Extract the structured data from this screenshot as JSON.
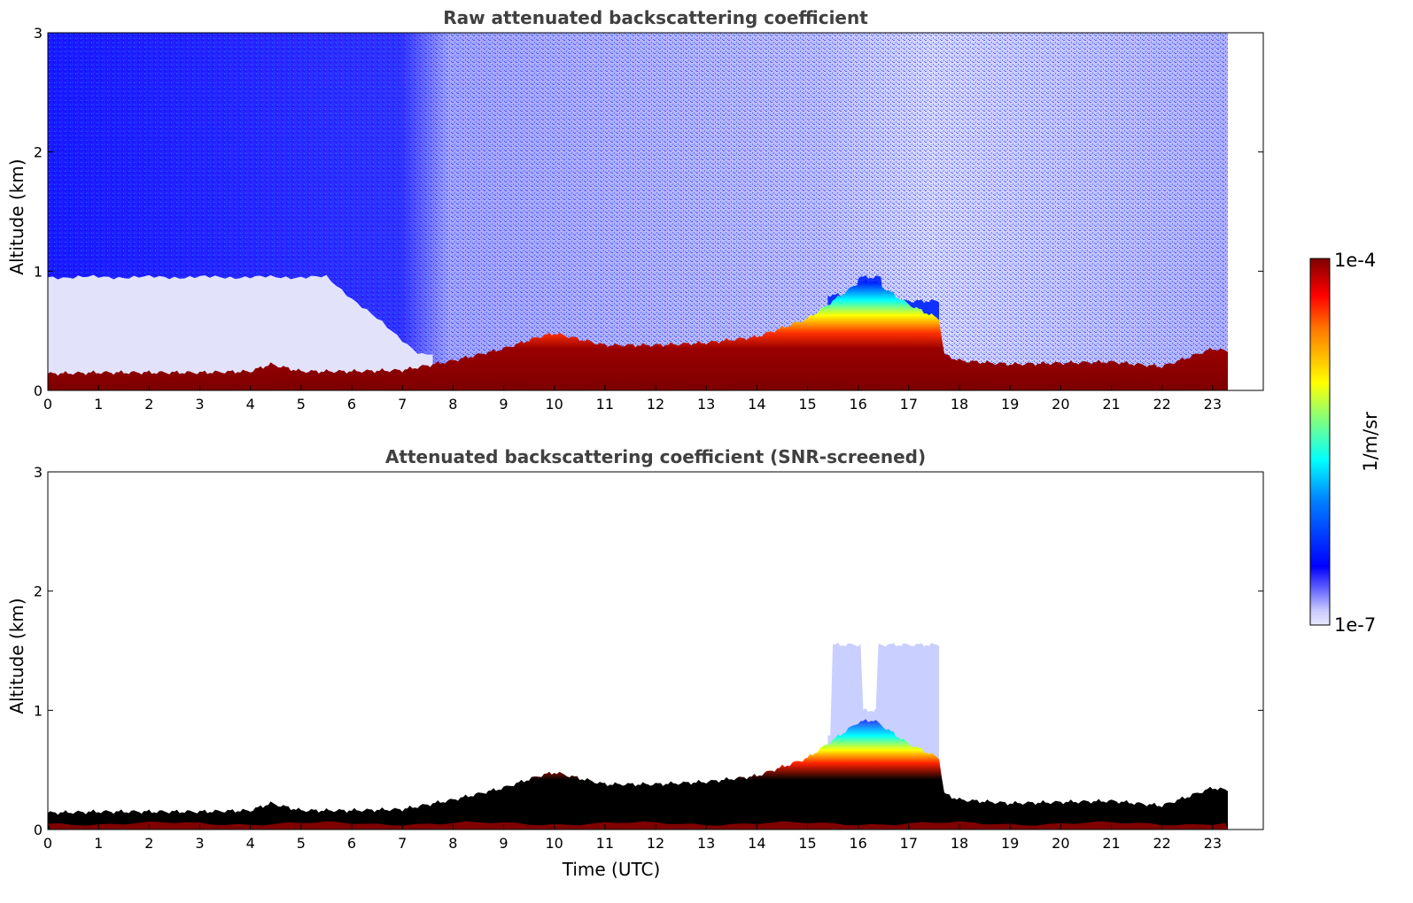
{
  "chart_data": [
    {
      "type": "heatmap",
      "title": "Raw attenuated backscattering coefficient",
      "xlabel": "",
      "ylabel": "Altitude (km)",
      "xlim": [
        0,
        24
      ],
      "ylim": [
        0,
        3
      ],
      "x_ticks": [
        "0",
        "1",
        "2",
        "3",
        "4",
        "5",
        "6",
        "7",
        "8",
        "9",
        "10",
        "11",
        "12",
        "13",
        "14",
        "15",
        "16",
        "17",
        "18",
        "19",
        "20",
        "21",
        "22",
        "23"
      ],
      "y_ticks": [
        "0",
        "1",
        "2",
        "3"
      ],
      "data_time_range": [
        0,
        23.3
      ],
      "boundary_layer_top_km": [
        [
          0,
          0.14
        ],
        [
          1,
          0.15
        ],
        [
          2,
          0.15
        ],
        [
          3,
          0.15
        ],
        [
          4,
          0.16
        ],
        [
          4.4,
          0.22
        ],
        [
          5,
          0.16
        ],
        [
          6,
          0.16
        ],
        [
          7,
          0.17
        ],
        [
          8,
          0.25
        ],
        [
          9,
          0.35
        ],
        [
          9.7,
          0.45
        ],
        [
          10,
          0.48
        ],
        [
          11,
          0.38
        ],
        [
          12,
          0.38
        ],
        [
          13,
          0.4
        ],
        [
          14,
          0.45
        ],
        [
          15,
          0.6
        ],
        [
          15.5,
          0.75
        ],
        [
          16,
          0.9
        ],
        [
          16.3,
          0.92
        ],
        [
          17,
          0.72
        ],
        [
          17.6,
          0.6
        ],
        [
          17.7,
          0.3
        ],
        [
          18,
          0.25
        ],
        [
          19,
          0.22
        ],
        [
          20,
          0.23
        ],
        [
          21,
          0.24
        ],
        [
          22,
          0.2
        ],
        [
          23,
          0.35
        ],
        [
          23.3,
          0.33
        ]
      ],
      "colorbar": {
        "label": "1/m/sr",
        "min_label": "1e-7",
        "max_label": "1e-4",
        "scale": "log"
      }
    },
    {
      "type": "heatmap",
      "title": "Attenuated backscattering coefficient (SNR-screened)",
      "xlabel": "Time (UTC)",
      "ylabel": "Altitude (km)",
      "xlim": [
        0,
        24
      ],
      "ylim": [
        0,
        3
      ],
      "x_ticks": [
        "0",
        "1",
        "2",
        "3",
        "4",
        "5",
        "6",
        "7",
        "8",
        "9",
        "10",
        "11",
        "12",
        "13",
        "14",
        "15",
        "16",
        "17",
        "18",
        "19",
        "20",
        "21",
        "22",
        "23"
      ],
      "y_ticks": [
        "0",
        "1",
        "2",
        "3"
      ],
      "data_time_range": [
        0,
        23.3
      ],
      "boundary_layer_top_km": [
        [
          0,
          0.14
        ],
        [
          1,
          0.15
        ],
        [
          2,
          0.15
        ],
        [
          3,
          0.15
        ],
        [
          4,
          0.16
        ],
        [
          4.4,
          0.22
        ],
        [
          5,
          0.16
        ],
        [
          6,
          0.16
        ],
        [
          7,
          0.17
        ],
        [
          8,
          0.25
        ],
        [
          9,
          0.35
        ],
        [
          9.7,
          0.45
        ],
        [
          10,
          0.48
        ],
        [
          11,
          0.38
        ],
        [
          12,
          0.38
        ],
        [
          13,
          0.4
        ],
        [
          14,
          0.45
        ],
        [
          15,
          0.6
        ],
        [
          15.5,
          0.75
        ],
        [
          16,
          0.9
        ],
        [
          16.3,
          0.92
        ],
        [
          17,
          0.72
        ],
        [
          17.6,
          0.6
        ],
        [
          17.7,
          0.3
        ],
        [
          18,
          0.25
        ],
        [
          19,
          0.22
        ],
        [
          20,
          0.23
        ],
        [
          21,
          0.24
        ],
        [
          22,
          0.2
        ],
        [
          23,
          0.35
        ],
        [
          23.3,
          0.33
        ]
      ],
      "colorbar": {
        "label": "1/m/sr",
        "min_label": "1e-7",
        "max_label": "1e-4",
        "scale": "log"
      }
    }
  ],
  "colors": {
    "jet": [
      "#00007f",
      "#0000ff",
      "#00ffff",
      "#ffff00",
      "#ff0000",
      "#7f0000"
    ],
    "title_text": "#404040"
  }
}
